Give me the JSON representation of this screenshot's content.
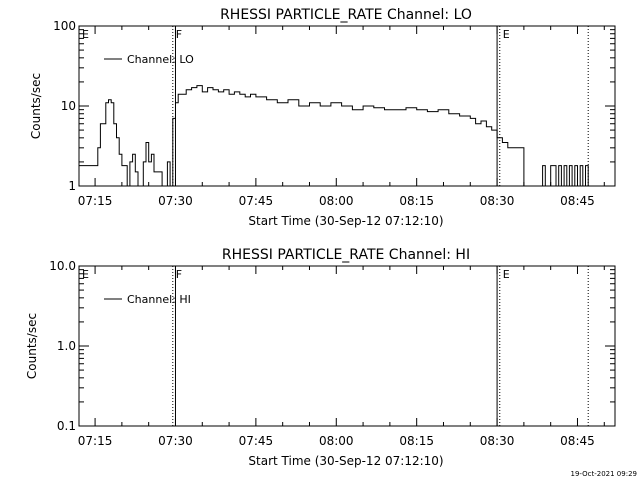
{
  "footer": {
    "timestamp": "19-Oct-2021 09:29"
  },
  "chart_data": [
    {
      "type": "line",
      "title": "RHESSI PARTICLE_RATE Channel: LO",
      "xlabel": "Start Time (30-Sep-12 07:12:10)",
      "ylabel": "Counts/sec",
      "yscale": "log",
      "ylim": [
        1,
        100
      ],
      "xlim": [
        "07:12",
        "08:52"
      ],
      "xticks": [
        "07:15",
        "07:30",
        "07:45",
        "08:00",
        "08:15",
        "08:30",
        "08:45"
      ],
      "yticks": [
        "1",
        "10",
        "100"
      ],
      "legend": {
        "position": "top-left",
        "entries": [
          "Channel: LO"
        ]
      },
      "markers": [
        {
          "label": "E",
          "time": "07:12",
          "style": "none"
        },
        {
          "label": "F",
          "time": "07:29.5",
          "style": "dotted"
        },
        {
          "label": "",
          "time": "07:30",
          "style": "solid"
        },
        {
          "label": "",
          "time": "08:30",
          "style": "solid"
        },
        {
          "label": "E",
          "time": "08:30.5",
          "style": "dotted"
        },
        {
          "label": "",
          "time": "08:47",
          "style": "dotted"
        }
      ],
      "series": [
        {
          "name": "Channel: LO",
          "x": [
            "07:12",
            "07:15",
            "07:15.5",
            "07:16",
            "07:17",
            "07:17.5",
            "07:18",
            "07:18.5",
            "07:19",
            "07:19.5",
            "07:20",
            "07:21",
            "07:21.5",
            "07:22",
            "07:22.5",
            "07:23",
            "07:23.5",
            "07:24",
            "07:24.5",
            "07:25",
            "07:25.5",
            "07:26",
            "07:26.5",
            "07:27",
            "07:27.5",
            "07:28",
            "07:28.5",
            "07:29",
            "07:29.5",
            "07:30",
            "07:30.5",
            "07:31",
            "07:32",
            "07:33",
            "07:34",
            "07:35",
            "07:36",
            "07:37",
            "07:38",
            "07:39",
            "07:40",
            "07:41",
            "07:42",
            "07:43",
            "07:44",
            "07:45",
            "07:47",
            "07:49",
            "07:51",
            "07:53",
            "07:55",
            "07:57",
            "07:59",
            "08:01",
            "08:03",
            "08:05",
            "08:07",
            "08:09",
            "08:11",
            "08:13",
            "08:15",
            "08:17",
            "08:19",
            "08:21",
            "08:23",
            "08:25",
            "08:26",
            "08:27",
            "08:28",
            "08:29",
            "08:30",
            "08:31",
            "08:32",
            "08:33",
            "08:34",
            "08:35",
            "08:37",
            "08:38",
            "08:38.5",
            "08:39",
            "08:39.5",
            "08:40",
            "08:41",
            "08:41.5",
            "08:42",
            "08:42.5",
            "08:43",
            "08:43.5",
            "08:44",
            "08:44.5",
            "08:45",
            "08:45.5",
            "08:46",
            "08:46.5",
            "08:47"
          ],
          "y": [
            1.8,
            1.8,
            3.0,
            6.0,
            11.0,
            12.0,
            11.0,
            6.0,
            4.0,
            2.5,
            1.8,
            1.0,
            2.0,
            2.5,
            1.5,
            1.0,
            1.0,
            2.0,
            3.5,
            2.0,
            2.5,
            1.5,
            1.5,
            1.5,
            1.0,
            1.0,
            2.0,
            1.0,
            7.0,
            11.0,
            14.0,
            14.0,
            16.0,
            17.0,
            18.0,
            15.0,
            17.0,
            16.0,
            15.0,
            16.0,
            14.0,
            15.0,
            14.0,
            13.0,
            14.0,
            13.0,
            12.0,
            11.0,
            12.0,
            10.0,
            11.0,
            10.0,
            11.0,
            10.0,
            9.0,
            10.0,
            9.5,
            9.0,
            9.0,
            9.5,
            9.0,
            8.5,
            9.0,
            8.0,
            7.5,
            7.0,
            6.0,
            6.5,
            5.5,
            5.0,
            4.0,
            3.5,
            3.0,
            3.0,
            3.0,
            1.0,
            1.0,
            1.0,
            1.8,
            1.0,
            1.0,
            1.8,
            1.0,
            1.8,
            1.0,
            1.8,
            1.0,
            1.8,
            1.0,
            1.8,
            1.0,
            1.8,
            1.0,
            1.8,
            1.0
          ]
        }
      ]
    },
    {
      "type": "line",
      "title": "RHESSI PARTICLE_RATE Channel: HI",
      "xlabel": "Start Time (30-Sep-12 07:12:10)",
      "ylabel": "Counts/sec",
      "yscale": "log",
      "ylim": [
        0.1,
        10
      ],
      "xlim": [
        "07:12",
        "08:52"
      ],
      "xticks": [
        "07:15",
        "07:30",
        "07:45",
        "08:00",
        "08:15",
        "08:30",
        "08:45"
      ],
      "yticks": [
        "0.1",
        "1.0",
        "10.0"
      ],
      "legend": {
        "position": "top-left",
        "entries": [
          "Channel: HI"
        ]
      },
      "markers": [
        {
          "label": "E",
          "time": "07:12",
          "style": "none"
        },
        {
          "label": "F",
          "time": "07:29.5",
          "style": "dotted"
        },
        {
          "label": "",
          "time": "07:30",
          "style": "solid"
        },
        {
          "label": "",
          "time": "08:30",
          "style": "solid"
        },
        {
          "label": "E",
          "time": "08:30.5",
          "style": "dotted"
        },
        {
          "label": "",
          "time": "08:47",
          "style": "dotted"
        }
      ],
      "series": [
        {
          "name": "Channel: HI",
          "x": [],
          "y": []
        }
      ]
    }
  ]
}
